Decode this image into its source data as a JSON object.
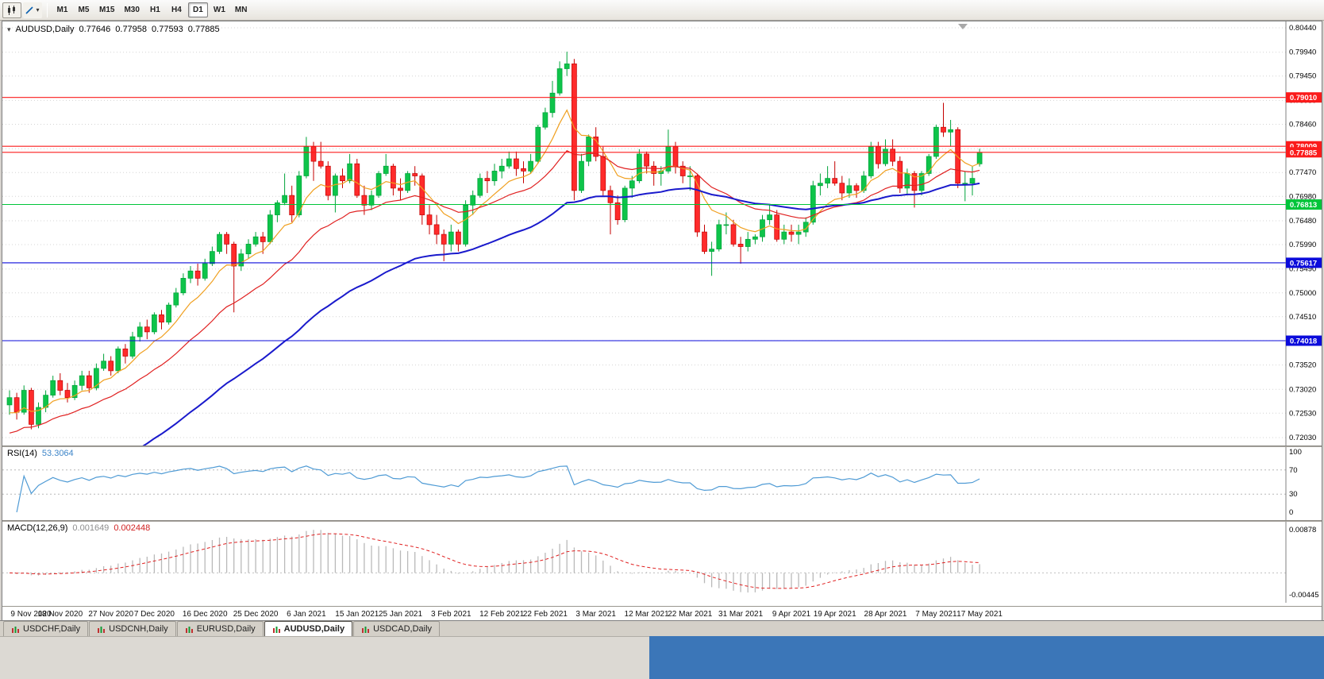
{
  "toolbar": {
    "timeframes": [
      {
        "label": "M1",
        "active": false
      },
      {
        "label": "M5",
        "active": false
      },
      {
        "label": "M15",
        "active": false
      },
      {
        "label": "M30",
        "active": false
      },
      {
        "label": "H1",
        "active": false
      },
      {
        "label": "H4",
        "active": false
      },
      {
        "label": "D1",
        "active": true
      },
      {
        "label": "W1",
        "active": false
      },
      {
        "label": "MN",
        "active": false
      }
    ]
  },
  "chart": {
    "title_symbol": "AUDUSD,Daily",
    "ohlc": {
      "open": "0.77646",
      "high": "0.77958",
      "low": "0.77593",
      "close": "0.77885"
    },
    "y_ticks": [
      "0.80440",
      "0.79940",
      "0.79450",
      "0.78950",
      "0.78460",
      "0.77960",
      "0.77470",
      "0.76980",
      "0.76480",
      "0.75990",
      "0.75490",
      "0.75000",
      "0.74510",
      "0.74020",
      "0.73520",
      "0.73020",
      "0.72530",
      "0.72030"
    ],
    "levels": [
      {
        "price": 0.7901,
        "label": "0.79010",
        "color": "#fb1b1b",
        "kind": "resistance"
      },
      {
        "price": 0.78009,
        "label": "0.78009",
        "color": "#fb1b1b",
        "kind": "resistance"
      },
      {
        "price": 0.77885,
        "label": "0.77885",
        "color": "#fb1b1b",
        "kind": "bid"
      },
      {
        "price": 0.76813,
        "label": "0.76813",
        "color": "#00c53a",
        "kind": "support"
      },
      {
        "price": 0.75617,
        "label": "0.75617",
        "color": "#0b0bdb",
        "kind": "support"
      },
      {
        "price": 0.74018,
        "label": "0.74018",
        "color": "#0b0bdb",
        "kind": "support"
      }
    ]
  },
  "rsi": {
    "title": "RSI(14)",
    "value": "53.3064",
    "ticks": [
      "100",
      "70",
      "30",
      "0"
    ],
    "dotted_levels": [
      70,
      30
    ],
    "color": "#4f9bd5"
  },
  "macd": {
    "title": "MACD(12,26,9)",
    "value_main": "0.001649",
    "value_signal": "0.002448",
    "tick_top": "0.00878",
    "tick_bottom": "-0.00445"
  },
  "tabs": [
    {
      "label": "USDCHF,Daily",
      "active": false
    },
    {
      "label": "USDCNH,Daily",
      "active": false
    },
    {
      "label": "EURUSD,Daily",
      "active": false
    },
    {
      "label": "AUDUSD,Daily",
      "active": true
    },
    {
      "label": "USDCAD,Daily",
      "active": false
    }
  ],
  "chart_data": {
    "type": "candlestick",
    "symbol": "AUDUSD",
    "timeframe": "Daily",
    "y_range": [
      0.7203,
      0.8044
    ],
    "x_ticks": [
      {
        "bar": 0,
        "label": "9 Nov 2020"
      },
      {
        "bar": 7,
        "label": "18 Nov 2020"
      },
      {
        "bar": 14,
        "label": "27 Nov 2020"
      },
      {
        "bar": 20,
        "label": "7 Dec 2020"
      },
      {
        "bar": 27,
        "label": "16 Dec 2020"
      },
      {
        "bar": 34,
        "label": "25 Dec 2020"
      },
      {
        "bar": 41,
        "label": "6 Jan 2021"
      },
      {
        "bar": 48,
        "label": "15 Jan 2021"
      },
      {
        "bar": 54,
        "label": "25 Jan 2021"
      },
      {
        "bar": 61,
        "label": "3 Feb 2021"
      },
      {
        "bar": 68,
        "label": "12 Feb 2021"
      },
      {
        "bar": 74,
        "label": "22 Feb 2021"
      },
      {
        "bar": 81,
        "label": "3 Mar 2021"
      },
      {
        "bar": 88,
        "label": "12 Mar 2021"
      },
      {
        "bar": 94,
        "label": "22 Mar 2021"
      },
      {
        "bar": 101,
        "label": "31 Mar 2021"
      },
      {
        "bar": 108,
        "label": "9 Apr 2021"
      },
      {
        "bar": 114,
        "label": "19 Apr 2021"
      },
      {
        "bar": 121,
        "label": "28 Apr 2021"
      },
      {
        "bar": 128,
        "label": "7 May 2021"
      },
      {
        "bar": 134,
        "label": "17 May 2021"
      }
    ],
    "overlays": [
      {
        "name": "ma-fast",
        "period": 8,
        "seed": 0.7245,
        "color": "#f0a020",
        "width": 1.2
      },
      {
        "name": "ma-mid",
        "period": 21,
        "seed": 0.7205,
        "color": "#e02020",
        "width": 1.2
      },
      {
        "name": "ma-slow",
        "period": 50,
        "seed": 0.701,
        "color": "#1a1acc",
        "width": 2
      }
    ],
    "indicators": [
      {
        "type": "rsi",
        "period": 14,
        "last": 53.3064,
        "levels": [
          70,
          30
        ]
      },
      {
        "type": "macd",
        "params": [
          12,
          26,
          9
        ],
        "last_main": 0.001649,
        "last_signal": 0.002448
      }
    ],
    "candles": [
      [
        0.727,
        0.73,
        0.725,
        0.7285
      ],
      [
        0.7285,
        0.7295,
        0.724,
        0.7255
      ],
      [
        0.7255,
        0.731,
        0.725,
        0.73
      ],
      [
        0.73,
        0.7305,
        0.722,
        0.723
      ],
      [
        0.723,
        0.7275,
        0.7222,
        0.7265
      ],
      [
        0.7265,
        0.73,
        0.7255,
        0.729
      ],
      [
        0.729,
        0.733,
        0.7285,
        0.732
      ],
      [
        0.732,
        0.7335,
        0.729,
        0.73
      ],
      [
        0.73,
        0.7315,
        0.7275,
        0.7285
      ],
      [
        0.7285,
        0.732,
        0.728,
        0.731
      ],
      [
        0.731,
        0.734,
        0.73,
        0.733
      ],
      [
        0.733,
        0.734,
        0.7295,
        0.7305
      ],
      [
        0.7305,
        0.7355,
        0.73,
        0.7345
      ],
      [
        0.7345,
        0.7375,
        0.734,
        0.736
      ],
      [
        0.736,
        0.737,
        0.733,
        0.734
      ],
      [
        0.734,
        0.739,
        0.7335,
        0.7385
      ],
      [
        0.7385,
        0.7395,
        0.7355,
        0.737
      ],
      [
        0.737,
        0.742,
        0.7365,
        0.741
      ],
      [
        0.741,
        0.744,
        0.74,
        0.743
      ],
      [
        0.743,
        0.7445,
        0.7405,
        0.742
      ],
      [
        0.742,
        0.746,
        0.7415,
        0.7455
      ],
      [
        0.7455,
        0.7465,
        0.7425,
        0.744
      ],
      [
        0.744,
        0.748,
        0.7435,
        0.7475
      ],
      [
        0.7475,
        0.751,
        0.747,
        0.75
      ],
      [
        0.75,
        0.754,
        0.7495,
        0.753
      ],
      [
        0.753,
        0.7555,
        0.752,
        0.7545
      ],
      [
        0.7545,
        0.756,
        0.7515,
        0.753
      ],
      [
        0.753,
        0.757,
        0.7525,
        0.756
      ],
      [
        0.756,
        0.7595,
        0.7555,
        0.7585
      ],
      [
        0.7585,
        0.7625,
        0.758,
        0.762
      ],
      [
        0.762,
        0.7625,
        0.758,
        0.76
      ],
      [
        0.76,
        0.7605,
        0.746,
        0.7555
      ],
      [
        0.7555,
        0.759,
        0.7545,
        0.758
      ],
      [
        0.758,
        0.761,
        0.757,
        0.76
      ],
      [
        0.76,
        0.7625,
        0.7595,
        0.7615
      ],
      [
        0.7615,
        0.7625,
        0.758,
        0.7605
      ],
      [
        0.7605,
        0.767,
        0.76,
        0.766
      ],
      [
        0.766,
        0.769,
        0.7645,
        0.7685
      ],
      [
        0.7685,
        0.7745,
        0.768,
        0.77
      ],
      [
        0.77,
        0.772,
        0.7645,
        0.766
      ],
      [
        0.766,
        0.775,
        0.7655,
        0.774
      ],
      [
        0.774,
        0.782,
        0.7735,
        0.78
      ],
      [
        0.78,
        0.781,
        0.773,
        0.777
      ],
      [
        0.777,
        0.781,
        0.7755,
        0.776
      ],
      [
        0.776,
        0.777,
        0.769,
        0.77
      ],
      [
        0.77,
        0.7745,
        0.7665,
        0.774
      ],
      [
        0.774,
        0.7755,
        0.7715,
        0.773
      ],
      [
        0.773,
        0.7785,
        0.7725,
        0.7765
      ],
      [
        0.7765,
        0.7775,
        0.7695,
        0.77
      ],
      [
        0.77,
        0.772,
        0.766,
        0.768
      ],
      [
        0.768,
        0.771,
        0.767,
        0.77
      ],
      [
        0.77,
        0.775,
        0.7695,
        0.7745
      ],
      [
        0.7745,
        0.7785,
        0.774,
        0.776
      ],
      [
        0.776,
        0.7765,
        0.77,
        0.7715
      ],
      [
        0.7715,
        0.7735,
        0.769,
        0.771
      ],
      [
        0.771,
        0.775,
        0.7705,
        0.7745
      ],
      [
        0.7745,
        0.776,
        0.772,
        0.774
      ],
      [
        0.774,
        0.7745,
        0.764,
        0.766
      ],
      [
        0.766,
        0.768,
        0.762,
        0.764
      ],
      [
        0.764,
        0.766,
        0.76,
        0.762
      ],
      [
        0.762,
        0.763,
        0.7565,
        0.76
      ],
      [
        0.76,
        0.764,
        0.7585,
        0.7625
      ],
      [
        0.7625,
        0.763,
        0.7585,
        0.76
      ],
      [
        0.76,
        0.769,
        0.7595,
        0.768
      ],
      [
        0.768,
        0.771,
        0.766,
        0.77
      ],
      [
        0.77,
        0.7745,
        0.7695,
        0.7735
      ],
      [
        0.7735,
        0.775,
        0.7705,
        0.773
      ],
      [
        0.773,
        0.7765,
        0.772,
        0.775
      ],
      [
        0.775,
        0.7775,
        0.7735,
        0.776
      ],
      [
        0.776,
        0.779,
        0.7755,
        0.7775
      ],
      [
        0.7775,
        0.779,
        0.774,
        0.7755
      ],
      [
        0.7755,
        0.777,
        0.7725,
        0.775
      ],
      [
        0.775,
        0.7785,
        0.7745,
        0.777
      ],
      [
        0.777,
        0.7845,
        0.7765,
        0.784
      ],
      [
        0.784,
        0.788,
        0.7835,
        0.787
      ],
      [
        0.787,
        0.7935,
        0.786,
        0.791
      ],
      [
        0.791,
        0.7975,
        0.7905,
        0.796
      ],
      [
        0.796,
        0.7995,
        0.7945,
        0.797
      ],
      [
        0.797,
        0.798,
        0.769,
        0.771
      ],
      [
        0.771,
        0.7785,
        0.7705,
        0.777
      ],
      [
        0.777,
        0.7825,
        0.776,
        0.782
      ],
      [
        0.782,
        0.784,
        0.777,
        0.778
      ],
      [
        0.778,
        0.78,
        0.77,
        0.771
      ],
      [
        0.771,
        0.772,
        0.762,
        0.7685
      ],
      [
        0.7685,
        0.77,
        0.764,
        0.765
      ],
      [
        0.765,
        0.772,
        0.7645,
        0.7715
      ],
      [
        0.7715,
        0.774,
        0.7695,
        0.773
      ],
      [
        0.773,
        0.7795,
        0.7725,
        0.7785
      ],
      [
        0.7785,
        0.779,
        0.7745,
        0.776
      ],
      [
        0.776,
        0.777,
        0.772,
        0.7745
      ],
      [
        0.7745,
        0.776,
        0.772,
        0.775
      ],
      [
        0.775,
        0.7835,
        0.7745,
        0.78
      ],
      [
        0.78,
        0.781,
        0.7745,
        0.776
      ],
      [
        0.776,
        0.777,
        0.7725,
        0.774
      ],
      [
        0.774,
        0.776,
        0.771,
        0.774
      ],
      [
        0.774,
        0.7745,
        0.7615,
        0.7625
      ],
      [
        0.7625,
        0.764,
        0.758,
        0.7585
      ],
      [
        0.7585,
        0.7605,
        0.7535,
        0.759
      ],
      [
        0.759,
        0.765,
        0.7585,
        0.764
      ],
      [
        0.764,
        0.7665,
        0.762,
        0.764
      ],
      [
        0.764,
        0.765,
        0.7595,
        0.76
      ],
      [
        0.76,
        0.7615,
        0.756,
        0.7595
      ],
      [
        0.7595,
        0.7625,
        0.7585,
        0.761
      ],
      [
        0.761,
        0.762,
        0.76,
        0.7615
      ],
      [
        0.7615,
        0.766,
        0.7605,
        0.765
      ],
      [
        0.765,
        0.768,
        0.764,
        0.766
      ],
      [
        0.766,
        0.767,
        0.7605,
        0.761
      ],
      [
        0.761,
        0.764,
        0.76,
        0.7625
      ],
      [
        0.7625,
        0.764,
        0.7605,
        0.762
      ],
      [
        0.762,
        0.764,
        0.76,
        0.7625
      ],
      [
        0.7625,
        0.7655,
        0.7615,
        0.7645
      ],
      [
        0.7645,
        0.773,
        0.764,
        0.772
      ],
      [
        0.772,
        0.7745,
        0.77,
        0.7725
      ],
      [
        0.7725,
        0.776,
        0.7715,
        0.7735
      ],
      [
        0.7735,
        0.777,
        0.772,
        0.7725
      ],
      [
        0.7725,
        0.774,
        0.769,
        0.7705
      ],
      [
        0.7705,
        0.7735,
        0.7695,
        0.772
      ],
      [
        0.772,
        0.7725,
        0.7695,
        0.771
      ],
      [
        0.771,
        0.775,
        0.7705,
        0.774
      ],
      [
        0.774,
        0.781,
        0.7735,
        0.78
      ],
      [
        0.78,
        0.781,
        0.7755,
        0.7765
      ],
      [
        0.7765,
        0.7815,
        0.776,
        0.7795
      ],
      [
        0.7795,
        0.7815,
        0.776,
        0.777
      ],
      [
        0.777,
        0.778,
        0.7705,
        0.7715
      ],
      [
        0.7715,
        0.7755,
        0.77,
        0.7745
      ],
      [
        0.7745,
        0.775,
        0.7675,
        0.771
      ],
      [
        0.771,
        0.775,
        0.77,
        0.7745
      ],
      [
        0.7745,
        0.7785,
        0.774,
        0.778
      ],
      [
        0.778,
        0.7845,
        0.7775,
        0.784
      ],
      [
        0.784,
        0.789,
        0.782,
        0.783
      ],
      [
        0.783,
        0.7855,
        0.78,
        0.7835
      ],
      [
        0.7835,
        0.784,
        0.7715,
        0.7725
      ],
      [
        0.7725,
        0.775,
        0.7688,
        0.7725
      ],
      [
        0.7725,
        0.776,
        0.77,
        0.7735
      ],
      [
        0.77646,
        0.77958,
        0.77593,
        0.77885
      ]
    ]
  }
}
